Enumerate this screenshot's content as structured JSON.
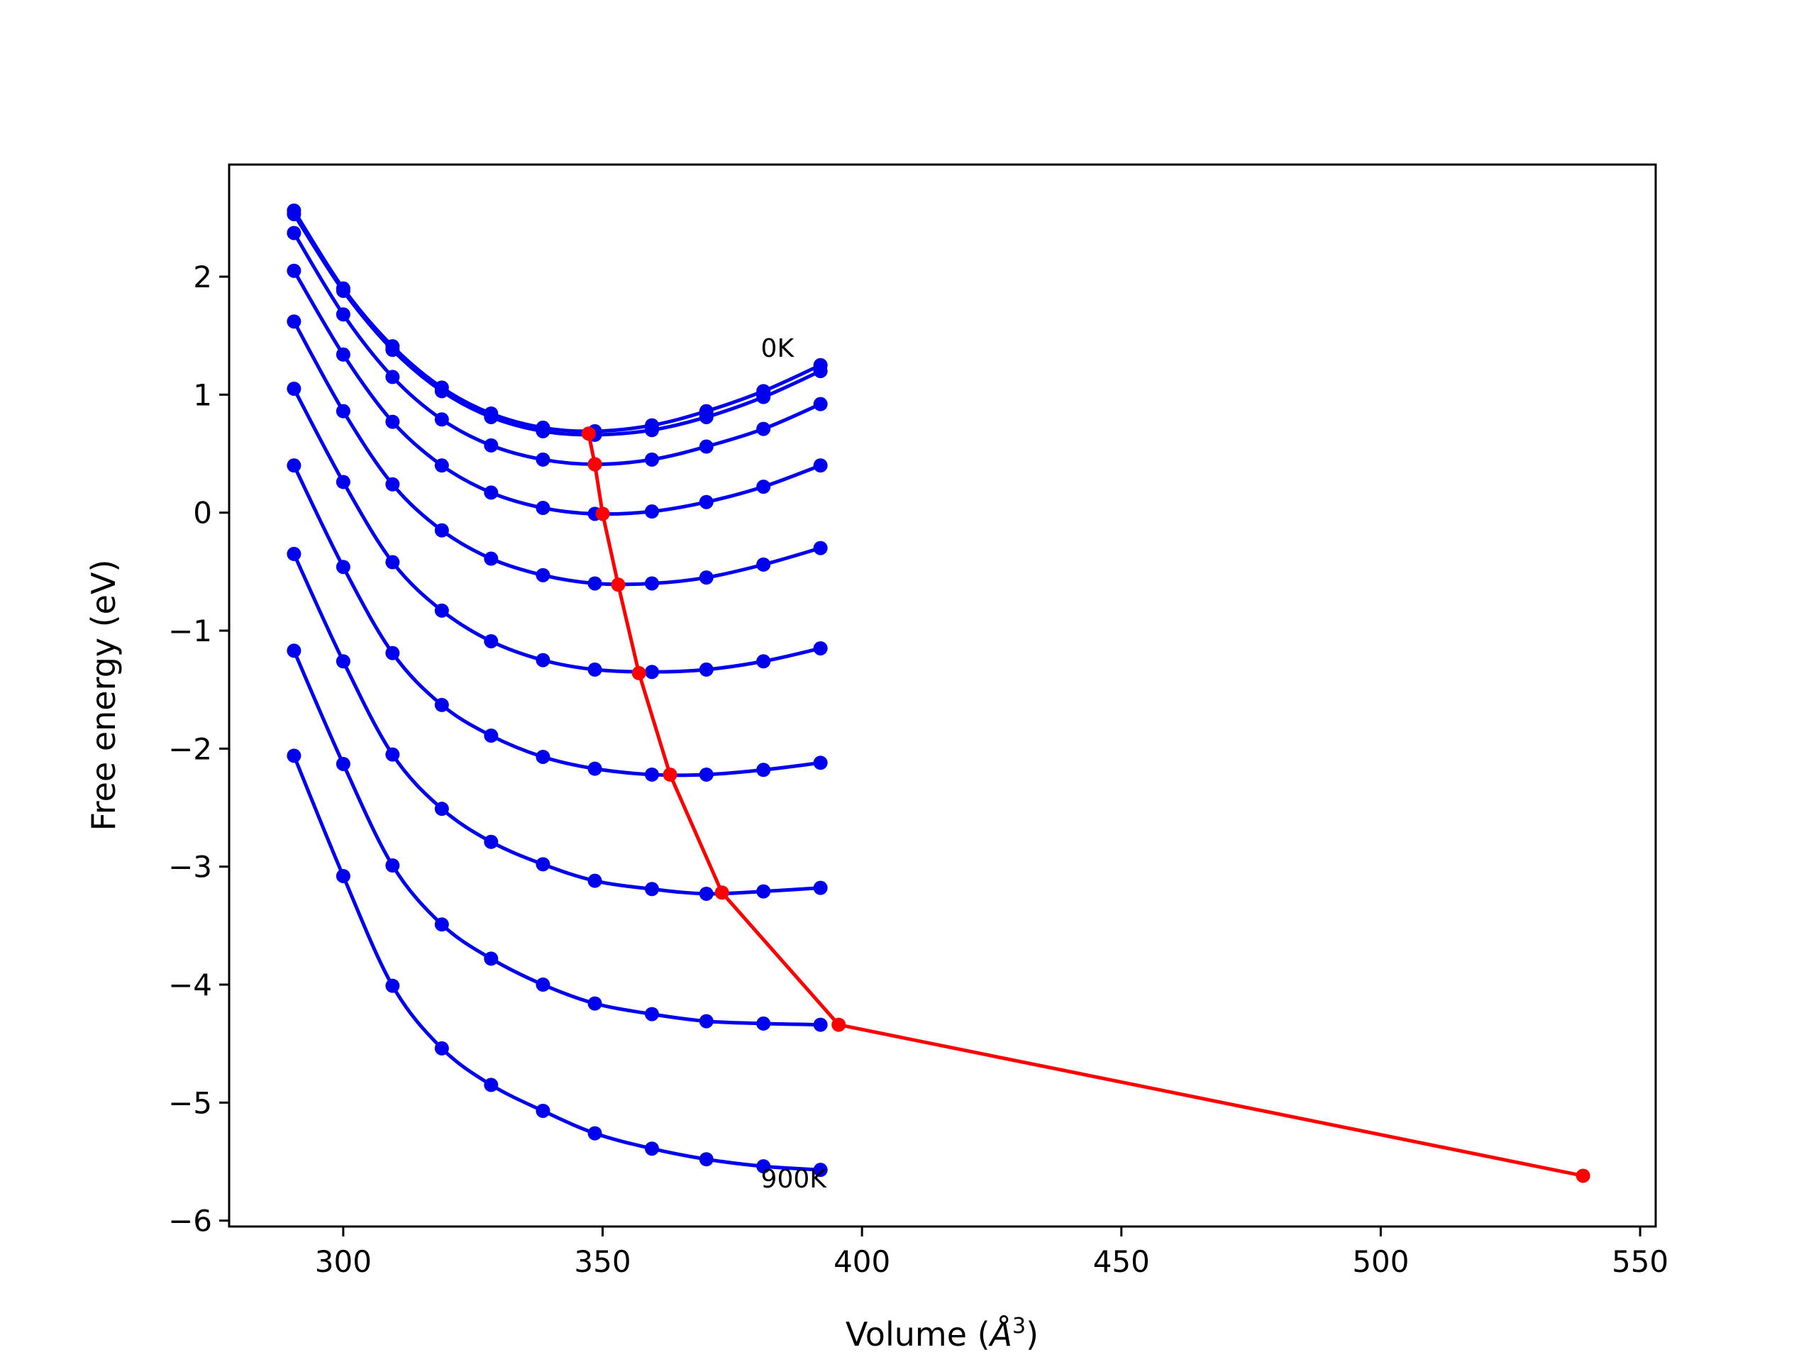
{
  "chart_data": {
    "type": "line",
    "title": "",
    "xlabel": "Volume (",
    "xlabel_unit": "Å",
    "xlabel_sup": "3",
    "xlabel_close": ")",
    "ylabel": "Free energy (eV)",
    "xlim": [
      278,
      553
    ],
    "ylim": [
      -6.05,
      2.95
    ],
    "xticks": [
      300,
      350,
      400,
      450,
      500,
      550
    ],
    "xtick_labels": [
      "300",
      "350",
      "400",
      "450",
      "500",
      "550"
    ],
    "yticks": [
      -6,
      -5,
      -4,
      -3,
      -2,
      -1,
      0,
      1,
      2
    ],
    "ytick_labels": [
      "−6",
      "−5",
      "−4",
      "−3",
      "−2",
      "−1",
      "0",
      "1",
      "2"
    ],
    "grid": false,
    "legend": "none",
    "colors": {
      "curves": "#0000ee",
      "minima": "#ff0000"
    },
    "annotations": [
      {
        "text": "0K",
        "x": 380.5,
        "y": 1.32
      },
      {
        "text": "900K",
        "x": 380.5,
        "y": -5.72
      }
    ],
    "x": [
      290.5,
      300,
      309.5,
      319,
      328.5,
      338.5,
      348.5,
      359.5,
      370,
      381,
      392
    ],
    "series": [
      {
        "values": [
          2.56,
          1.9,
          1.41,
          1.06,
          0.84,
          0.72,
          0.69,
          0.74,
          0.86,
          1.03,
          1.25
        ]
      },
      {
        "values": [
          2.53,
          1.88,
          1.38,
          1.03,
          0.81,
          0.69,
          0.66,
          0.7,
          0.81,
          0.98,
          1.2
        ]
      },
      {
        "values": [
          2.37,
          1.68,
          1.15,
          0.79,
          0.57,
          0.45,
          0.41,
          0.45,
          0.56,
          0.71,
          0.92
        ]
      },
      {
        "values": [
          2.05,
          1.34,
          0.77,
          0.4,
          0.17,
          0.04,
          -0.01,
          0.01,
          0.09,
          0.22,
          0.4
        ]
      },
      {
        "values": [
          1.62,
          0.86,
          0.24,
          -0.15,
          -0.39,
          -0.53,
          -0.6,
          -0.6,
          -0.55,
          -0.44,
          -0.3
        ]
      },
      {
        "values": [
          1.05,
          0.26,
          -0.42,
          -0.83,
          -1.09,
          -1.25,
          -1.33,
          -1.35,
          -1.33,
          -1.26,
          -1.15
        ]
      },
      {
        "values": [
          0.4,
          -0.46,
          -1.19,
          -1.63,
          -1.89,
          -2.07,
          -2.17,
          -2.22,
          -2.22,
          -2.18,
          -2.12
        ]
      },
      {
        "values": [
          -0.35,
          -1.26,
          -2.05,
          -2.51,
          -2.79,
          -2.98,
          -3.12,
          -3.19,
          -3.23,
          -3.21,
          -3.18
        ]
      },
      {
        "values": [
          -1.17,
          -2.13,
          -2.99,
          -3.49,
          -3.78,
          -4.0,
          -4.16,
          -4.25,
          -4.31,
          -4.33,
          -4.34
        ]
      },
      {
        "values": [
          -2.06,
          -3.08,
          -4.01,
          -4.54,
          -4.85,
          -5.07,
          -5.26,
          -5.39,
          -5.48,
          -5.54,
          -5.57
        ]
      }
    ],
    "minima": {
      "x": [
        347.3,
        348.5,
        350.0,
        353.0,
        357.0,
        363.0,
        373.0,
        395.5,
        539.0
      ],
      "y": [
        0.67,
        0.41,
        -0.01,
        -0.61,
        -1.36,
        -2.22,
        -3.22,
        -4.34,
        -5.62
      ]
    }
  }
}
